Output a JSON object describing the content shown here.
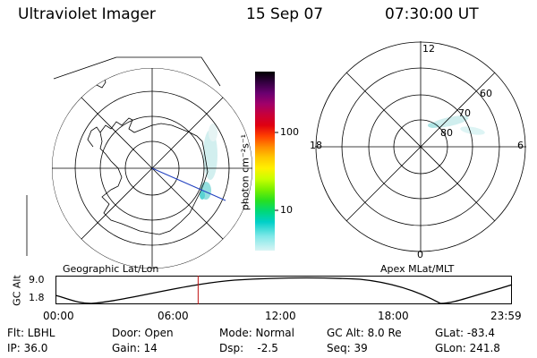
{
  "header": {
    "instrument": "Ultraviolet Imager",
    "date": "15 Sep 07",
    "time": "07:30:00 UT"
  },
  "colorbar": {
    "unit": "photon cm⁻²s⁻¹",
    "ticks": [
      "100",
      "10"
    ],
    "colors": [
      "#000000",
      "#330040",
      "#6a0070",
      "#a0006a",
      "#c8003a",
      "#e00010",
      "#ff4000",
      "#ff8c00",
      "#ffc800",
      "#fff000",
      "#c8ff00",
      "#78f000",
      "#28e020",
      "#00d878",
      "#00d0c8",
      "#80e8e8",
      "#d8f4f4"
    ]
  },
  "geo_map": {
    "label": "Geographic Lat/Lon"
  },
  "mag_map": {
    "label": "Apex MLat/MLT",
    "mlt_labels": {
      "top": "12",
      "bottom": "0",
      "left": "18",
      "right": "6"
    },
    "lat_labels": [
      "60",
      "70",
      "80"
    ]
  },
  "altitude_plot": {
    "ylabel": "GC Alt",
    "yticks": [
      "9.0",
      "1.8"
    ],
    "xticks": [
      "00:00",
      "06:00",
      "12:00",
      "18:00",
      "23:59"
    ],
    "marker_time_hours": 7.5
  },
  "info": {
    "row1": {
      "flt": "Flt: LBHL",
      "door": "Door: Open",
      "mode": "Mode: Normal",
      "gcalt": "GC Alt: 8.0 Re",
      "glat": "GLat: -83.4"
    },
    "row2": {
      "ip": "IP: 36.0",
      "gain": "Gain: 14",
      "dsp": "Dsp:    -2.5",
      "seq": "Seq: 39",
      "glon": "GLon: 241.8"
    }
  }
}
